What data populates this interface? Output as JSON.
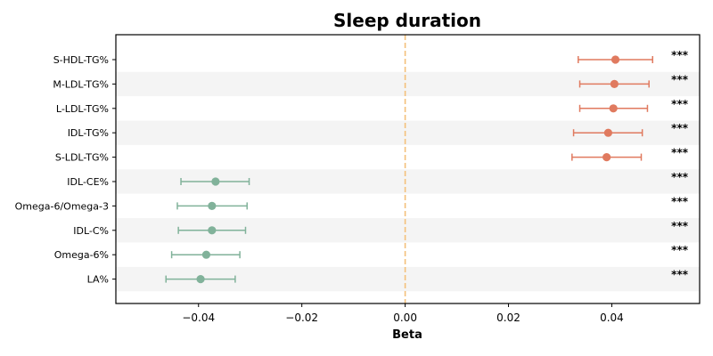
{
  "chart_data": {
    "type": "forest",
    "title": "Sleep duration",
    "xlabel": "Beta",
    "ylabel": "",
    "xlim": [
      -0.056,
      0.057
    ],
    "xticks": [
      -0.04,
      -0.02,
      0.0,
      0.02,
      0.04
    ],
    "xtick_labels": [
      "−0.04",
      "−0.02",
      "0.00",
      "0.02",
      "0.04"
    ],
    "reference_line": 0.0,
    "grid": false,
    "alternating_row_shading": true,
    "colors": {
      "positive": "#e07a5f",
      "negative": "#81b29a",
      "reference": "#f4c07a",
      "shade": "#f4f4f4"
    },
    "rows": [
      {
        "label": "S-HDL-TG%",
        "beta": 0.0407,
        "ci_low": 0.0335,
        "ci_high": 0.0479,
        "significance": "***"
      },
      {
        "label": "M-LDL-TG%",
        "beta": 0.0405,
        "ci_low": 0.0338,
        "ci_high": 0.0472,
        "significance": "***"
      },
      {
        "label": "L-LDL-TG%",
        "beta": 0.0403,
        "ci_low": 0.0338,
        "ci_high": 0.0469,
        "significance": "***"
      },
      {
        "label": "IDL-TG%",
        "beta": 0.0393,
        "ci_low": 0.0326,
        "ci_high": 0.0459,
        "significance": "***"
      },
      {
        "label": "S-LDL-TG%",
        "beta": 0.039,
        "ci_low": 0.0323,
        "ci_high": 0.0457,
        "significance": "***"
      },
      {
        "label": "IDL-CE%",
        "beta": -0.0367,
        "ci_low": -0.0434,
        "ci_high": -0.0302,
        "significance": "***"
      },
      {
        "label": "Omega-6/Omega-3",
        "beta": -0.0374,
        "ci_low": -0.0441,
        "ci_high": -0.0306,
        "significance": "***"
      },
      {
        "label": "IDL-C%",
        "beta": -0.0374,
        "ci_low": -0.0439,
        "ci_high": -0.0309,
        "significance": "***"
      },
      {
        "label": "Omega-6%",
        "beta": -0.0385,
        "ci_low": -0.0452,
        "ci_high": -0.032,
        "significance": "***"
      },
      {
        "label": "LA%",
        "beta": -0.0396,
        "ci_low": -0.0463,
        "ci_high": -0.0329,
        "significance": "***"
      }
    ]
  }
}
